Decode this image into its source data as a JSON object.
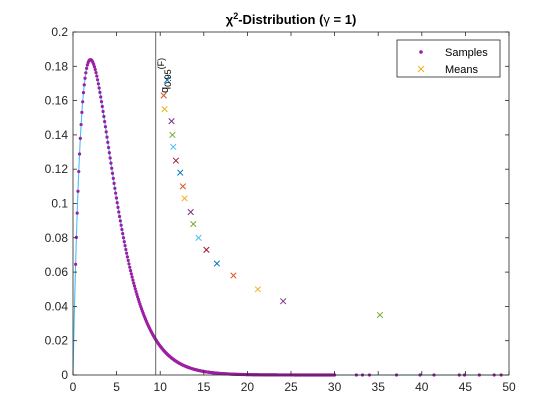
{
  "chart_data": {
    "type": "scatter",
    "title": {
      "symbol": "χ",
      "sup": "2",
      "text": "-Distribution (",
      "gamma": "γ",
      "suffix": " = 1)"
    },
    "xlabel": "",
    "ylabel": "",
    "xlim": [
      0,
      50
    ],
    "ylim": [
      0,
      0.2
    ],
    "xticks": [
      "0",
      "5",
      "10",
      "15",
      "20",
      "25",
      "30",
      "35",
      "40",
      "45",
      "50"
    ],
    "yticks": [
      "0",
      "0.02",
      "0.04",
      "0.06",
      "0.08",
      "0.1",
      "0.12",
      "0.14",
      "0.16",
      "0.18",
      "0.2"
    ],
    "grid": false,
    "legend": {
      "placement": "top-right",
      "entries": [
        {
          "label": "Samples",
          "marker": "dot",
          "color": "#9b1fa3"
        },
        {
          "label": "Means",
          "marker": "x",
          "color": "#edb120"
        }
      ]
    },
    "density_curve": {
      "color": "#4dbeee",
      "description_k": 4
    },
    "vline": {
      "x": 9.49,
      "color": "#404040"
    },
    "annotation": {
      "main": "q",
      "sub": "0.95",
      "tail": "(F)"
    },
    "samples_color": "#9b1fa3",
    "isolated_samples_x": [
      32.5,
      33.2,
      34.0,
      37.1,
      39.8,
      41.4,
      44.3,
      44.9,
      46.6,
      48.3,
      49.1
    ],
    "means": {
      "colors": [
        "#0072bd",
        "#d95319",
        "#edb120",
        "#7e2f8e",
        "#77ac30",
        "#4dbeee",
        "#a2142f"
      ],
      "points": [
        {
          "x": 10.8,
          "y": 0.172
        },
        {
          "x": 10.4,
          "y": 0.163
        },
        {
          "x": 10.5,
          "y": 0.155
        },
        {
          "x": 11.3,
          "y": 0.148
        },
        {
          "x": 11.4,
          "y": 0.14
        },
        {
          "x": 11.5,
          "y": 0.133
        },
        {
          "x": 11.8,
          "y": 0.125
        },
        {
          "x": 12.3,
          "y": 0.118
        },
        {
          "x": 12.6,
          "y": 0.11
        },
        {
          "x": 12.8,
          "y": 0.103
        },
        {
          "x": 13.5,
          "y": 0.095
        },
        {
          "x": 13.8,
          "y": 0.088
        },
        {
          "x": 14.4,
          "y": 0.08
        },
        {
          "x": 15.3,
          "y": 0.073
        },
        {
          "x": 16.5,
          "y": 0.065
        },
        {
          "x": 18.4,
          "y": 0.058
        },
        {
          "x": 21.2,
          "y": 0.05
        },
        {
          "x": 24.1,
          "y": 0.043
        },
        {
          "x": 35.2,
          "y": 0.035
        }
      ]
    }
  }
}
